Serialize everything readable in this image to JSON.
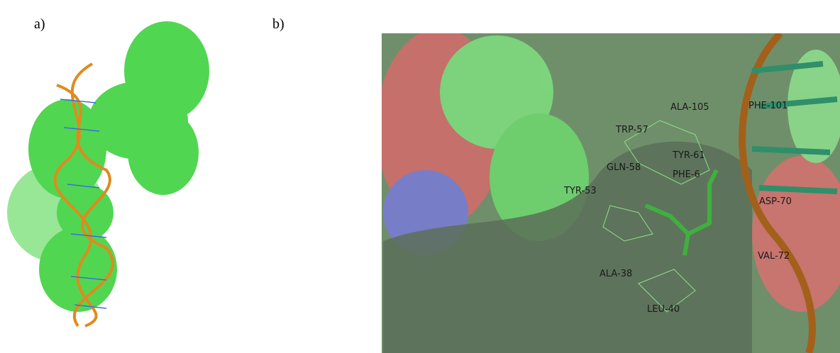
{
  "panels": [
    {
      "label": "a)"
    },
    {
      "label": "b)",
      "residues": [
        "ALA-105",
        "PHE-101",
        "TRP-57",
        "TYR-61",
        "GLN-58",
        "PHE-6",
        "TYR-53",
        "ASP-70",
        "VAL-72",
        "ALA-38",
        "LEU-40"
      ]
    }
  ]
}
